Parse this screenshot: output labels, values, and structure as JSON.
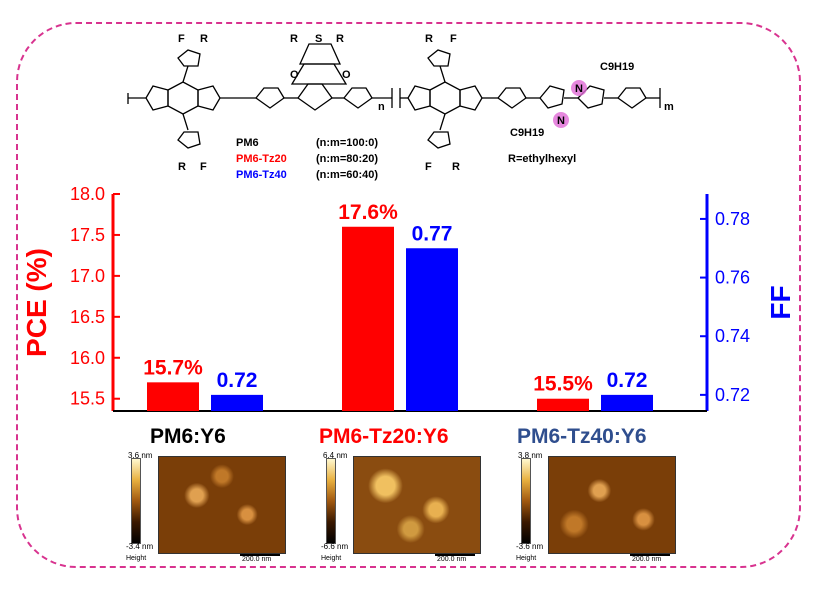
{
  "structure": {
    "polymer_label": "PM6",
    "polymer_ratio": "(n:m=100:0)",
    "tz20_label": "PM6-Tz20",
    "tz20_ratio": "(n:m=80:20)",
    "tz40_label": "PM6-Tz40",
    "tz40_ratio": "(n:m=60:40)",
    "r_def": "R=ethylhexyl",
    "atom_S": "S",
    "atom_F": "F",
    "atom_R": "R",
    "atom_O": "O",
    "atom_N": "N",
    "alkyl": "C9H19",
    "repeat_n": "n",
    "repeat_m": "m"
  },
  "colors": {
    "pce": "#ff0000",
    "ff": "#0000ff",
    "frame": "#d8338f",
    "tz40_label": "#2f4e8e"
  },
  "chart_data": {
    "type": "bar",
    "categories": [
      "PM6:Y6",
      "PM6-Tz20:Y6",
      "PM6-Tz40:Y6"
    ],
    "category_colors": [
      "#000000",
      "#ff0000",
      "#2f4e8e"
    ],
    "series": [
      {
        "name": "PCE (%)",
        "axis": "left",
        "color": "#ff0000",
        "values": [
          15.7,
          17.6,
          15.5
        ],
        "labels": [
          "15.7%",
          "17.6%",
          "15.5%"
        ]
      },
      {
        "name": "FF",
        "axis": "right",
        "color": "#0000ff",
        "values": [
          0.72,
          0.77,
          0.72
        ],
        "labels": [
          "0.72",
          "0.77",
          "0.72"
        ]
      }
    ],
    "ylabel": "PCE (%)",
    "y2label": "FF",
    "ylim": [
      15.35,
      18.0
    ],
    "y2lim": [
      0.7145,
      0.7885
    ],
    "yticks": [
      "15.5",
      "16.0",
      "16.5",
      "17.0",
      "17.5",
      "18.0"
    ],
    "y2ticks": [
      "0.72",
      "0.74",
      "0.76",
      "0.78"
    ]
  },
  "afm": [
    {
      "max": "3.6 nm",
      "min": "-3.4 nm",
      "height_label": "Height",
      "scale": "200.0 nm"
    },
    {
      "max": "6.4 nm",
      "min": "-6.6 nm",
      "height_label": "Height",
      "scale": "200.0 nm"
    },
    {
      "max": "3.8 nm",
      "min": "-3.6 nm",
      "height_label": "Height",
      "scale": "200.0 nm"
    }
  ]
}
